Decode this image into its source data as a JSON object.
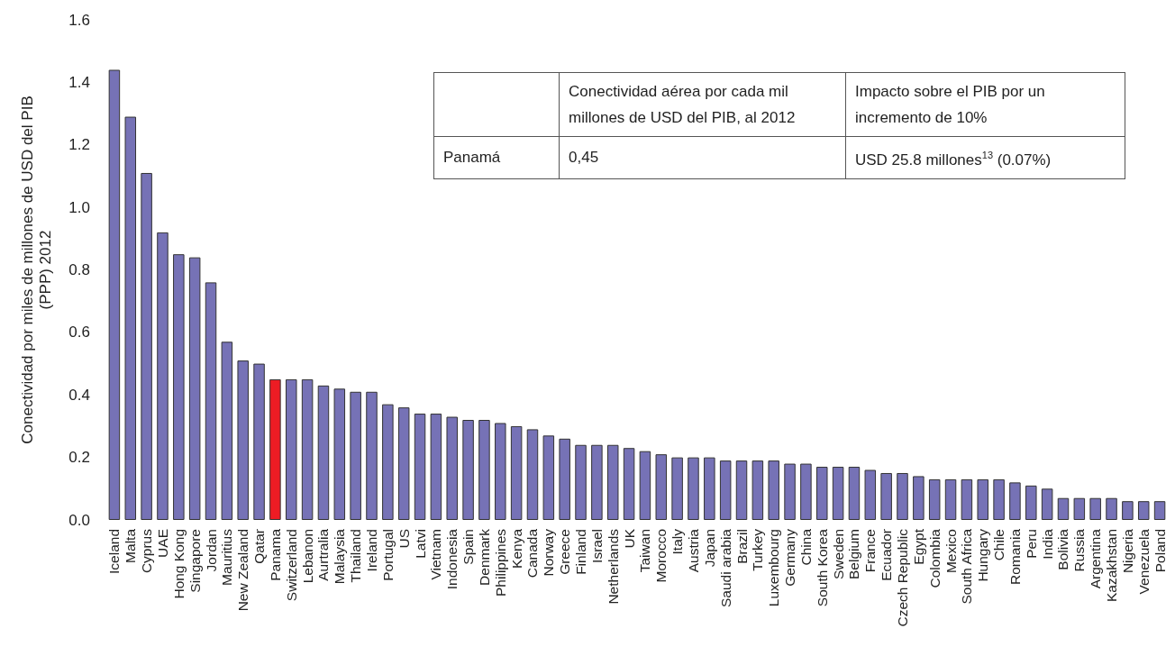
{
  "chart_data": {
    "type": "bar",
    "ylabel": "Conectividad por miles de millones de USD del PIB\n(PPP) 2012",
    "categories": [
      "Iceland",
      "Malta",
      "Cyprus",
      "UAE",
      "Hong Kong",
      "Singapore",
      "Jordan",
      "Mauritius",
      "New Zealand",
      "Qatar",
      "Panama",
      "Switzerland",
      "Lebanon",
      "Aurtralia",
      "Malaysia",
      "Thailand",
      "Ireland",
      "Portugal",
      "US",
      "Latvi",
      "Vietnam",
      "Indonesia",
      "Spain",
      "Denmark",
      "Philippines",
      "Kenya",
      "Canada",
      "Norway",
      "Greece",
      "Finland",
      "Israel",
      "Netherlands",
      "UK",
      "Taiwan",
      "Morocco",
      "Italy",
      "Austria",
      "Japan",
      "Saudi arabia",
      "Brazil",
      "Turkey",
      "Luxembourg",
      "Germany",
      "China",
      "South Korea",
      "Sweden",
      "Belgium",
      "France",
      "Ecuador",
      "Czech Republic",
      "Egypt",
      "Colombia",
      "Mexico",
      "South Africa",
      "Hungary",
      "Chile",
      "Romania",
      "Peru",
      "India",
      "Bolivia",
      "Russia",
      "Argentina",
      "Kazakhstan",
      "Nigeria",
      "Venezuela",
      "Poland"
    ],
    "values": [
      1.44,
      1.29,
      1.11,
      0.92,
      0.85,
      0.84,
      0.76,
      0.57,
      0.51,
      0.5,
      0.45,
      0.45,
      0.45,
      0.43,
      0.42,
      0.41,
      0.41,
      0.37,
      0.36,
      0.34,
      0.34,
      0.33,
      0.32,
      0.32,
      0.31,
      0.3,
      0.29,
      0.27,
      0.26,
      0.24,
      0.24,
      0.24,
      0.23,
      0.22,
      0.21,
      0.2,
      0.2,
      0.2,
      0.19,
      0.19,
      0.19,
      0.19,
      0.18,
      0.18,
      0.17,
      0.17,
      0.17,
      0.16,
      0.15,
      0.15,
      0.14,
      0.13,
      0.13,
      0.13,
      0.13,
      0.13,
      0.12,
      0.11,
      0.1,
      0.07,
      0.07,
      0.07,
      0.07,
      0.06,
      0.06,
      0.06
    ],
    "colors": [
      "#7672b6",
      "#7672b6",
      "#7672b6",
      "#7672b6",
      "#7672b6",
      "#7672b6",
      "#7672b6",
      "#7672b6",
      "#7672b6",
      "#7672b6",
      "#ed1c24",
      "#7672b6",
      "#7672b6",
      "#7672b6",
      "#7672b6",
      "#7672b6",
      "#7672b6",
      "#7672b6",
      "#7672b6",
      "#7672b6",
      "#7672b6",
      "#7672b6",
      "#7672b6",
      "#7672b6",
      "#7672b6",
      "#7672b6",
      "#7672b6",
      "#7672b6",
      "#7672b6",
      "#7672b6",
      "#7672b6",
      "#7672b6",
      "#7672b6",
      "#7672b6",
      "#7672b6",
      "#7672b6",
      "#7672b6",
      "#7672b6",
      "#7672b6",
      "#7672b6",
      "#7672b6",
      "#7672b6",
      "#7672b6",
      "#7672b6",
      "#7672b6",
      "#7672b6",
      "#7672b6",
      "#7672b6",
      "#7672b6",
      "#7672b6",
      "#7672b6",
      "#7672b6",
      "#7672b6",
      "#7672b6",
      "#7672b6",
      "#7672b6",
      "#7672b6",
      "#7672b6",
      "#7672b6",
      "#7672b6",
      "#7672b6",
      "#7672b6",
      "#7672b6",
      "#7672b6",
      "#7672b6",
      "#7672b6"
    ],
    "ylim": [
      0,
      1.6
    ],
    "yticks": [
      {
        "value": 0,
        "label": "0.0"
      },
      0.2,
      0.4,
      0.6,
      0.8,
      {
        "value": 1,
        "label": "1.0"
      },
      1.2,
      1.4,
      1.6
    ],
    "grid": false,
    "annotations": [
      "Conectividad aérea por cada mil millones de USD del PIB, al 2012",
      "Impacto sobre el PIB por un incremento de 10%",
      "Panamá",
      "0,45",
      "USD 25.8 millones$^{13}$ (0.07%)"
    ]
  }
}
